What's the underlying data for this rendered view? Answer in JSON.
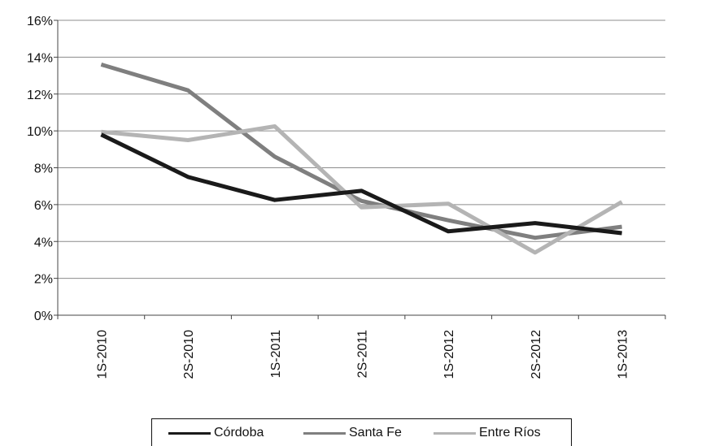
{
  "chart_data": {
    "type": "line",
    "categories": [
      "1S-2010",
      "2S-2010",
      "1S-2011",
      "2S-2011",
      "1S-2012",
      "2S-2012",
      "1S-2013"
    ],
    "series": [
      {
        "name": "Córdoba",
        "color": "#1a1a1a",
        "values": [
          9.8,
          7.5,
          6.25,
          6.75,
          4.55,
          5.0,
          4.45
        ]
      },
      {
        "name": "Santa Fe",
        "color": "#7f7f7f",
        "values": [
          13.6,
          12.2,
          8.6,
          6.2,
          5.15,
          4.2,
          4.8
        ]
      },
      {
        "name": "Entre Ríos",
        "color": "#b4b4b4",
        "values": [
          9.95,
          9.5,
          10.25,
          5.85,
          6.05,
          3.4,
          6.15
        ]
      }
    ],
    "yticks": [
      "0%",
      "2%",
      "4%",
      "6%",
      "8%",
      "10%",
      "12%",
      "14%",
      "16%"
    ],
    "ylim": [
      0,
      16
    ],
    "grid": true,
    "legend_position": "bottom",
    "title": "",
    "xlabel": "",
    "ylabel": ""
  }
}
